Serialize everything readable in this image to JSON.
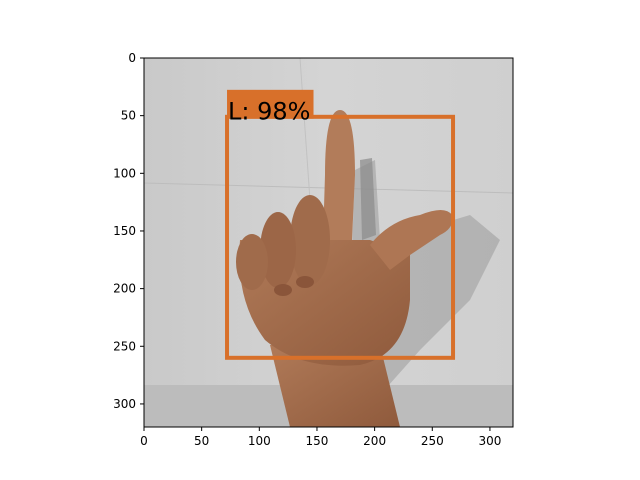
{
  "figure": {
    "x_ticks": [
      "0",
      "50",
      "100",
      "150",
      "200",
      "250",
      "300"
    ],
    "y_ticks": [
      "0",
      "50",
      "100",
      "150",
      "200",
      "250",
      "300"
    ],
    "x_range": [
      0,
      320
    ],
    "y_range": [
      320,
      0
    ]
  },
  "image": {
    "description_icon": "hand-sign-photo",
    "colors": {
      "wall": "#cfcfcf",
      "skin": "#a87050",
      "shadow": "#8f8f8f"
    }
  },
  "detection": {
    "label": "L: 98%",
    "box": {
      "x_min": 72,
      "y_min": 51,
      "x_max": 268,
      "y_max": 260
    },
    "label_box": {
      "x_min": 72,
      "y_min": 25,
      "x_max": 147,
      "y_max": 50
    },
    "color": "#d8702a"
  }
}
